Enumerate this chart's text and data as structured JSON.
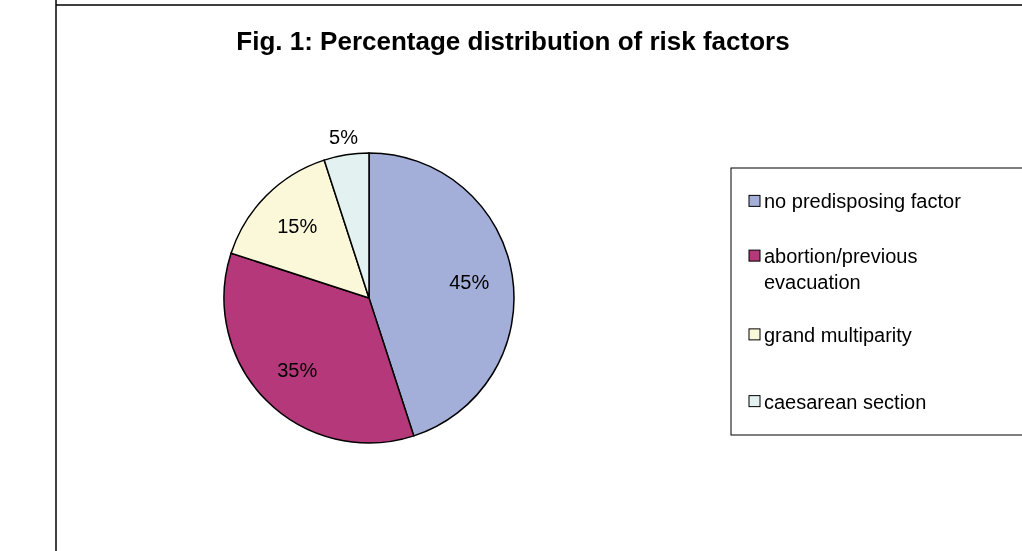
{
  "chart_data": {
    "type": "pie",
    "title": "Fig. 1: Percentage distribution of risk factors",
    "categories": [
      "no predisposing factor",
      "abortion/previous evacuation",
      "grand multiparity",
      "caesarean section"
    ],
    "values": [
      45,
      35,
      15,
      5
    ],
    "value_labels": [
      "45%",
      "35%",
      "15%",
      "5%"
    ],
    "colors": [
      "#a3aed9",
      "#b5397a",
      "#fbf8da",
      "#e4f1f1"
    ],
    "legend": "right"
  }
}
